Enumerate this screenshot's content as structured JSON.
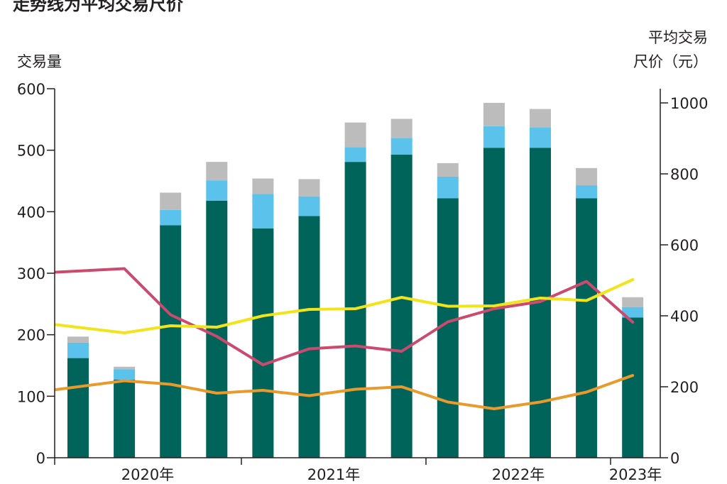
{
  "chart_data": {
    "type": "bar",
    "title": "走势线为平均交易尺价",
    "left_axis": {
      "label": "交易量",
      "ylim": [
        0,
        600
      ],
      "ticks": [
        "0",
        "100",
        "200",
        "300",
        "400",
        "500",
        "600"
      ]
    },
    "right_axis": {
      "label_lines": [
        "平均交易",
        "尺价（元）"
      ],
      "ylim": [
        0,
        1040
      ],
      "ticks": [
        "0",
        "200",
        "400",
        "600",
        "800",
        "1000"
      ]
    },
    "x_axis": {
      "labels": [
        "2020年",
        "2021年",
        "2022年",
        "2023年"
      ]
    },
    "bar_series": [
      {
        "color": "#00645a",
        "values": [
          162,
          127,
          378,
          418,
          373,
          393,
          481,
          493,
          422,
          504,
          504,
          422,
          228
        ]
      },
      {
        "color": "#5bc2ec",
        "values": [
          25,
          17,
          25,
          33,
          56,
          32,
          24,
          27,
          35,
          35,
          33,
          21,
          17
        ]
      },
      {
        "color": "#bcbcbc",
        "values": [
          10,
          4,
          28,
          30,
          25,
          28,
          40,
          31,
          22,
          38,
          30,
          28,
          16
        ]
      }
    ],
    "line_series": [
      {
        "color": "#cc4a6e",
        "axis": "right",
        "values": [
          523,
          533,
          403,
          342,
          262,
          307,
          315,
          300,
          383,
          420,
          440,
          497,
          382
        ]
      },
      {
        "color": "#f2e41a",
        "axis": "right",
        "values": [
          375,
          352,
          372,
          368,
          400,
          418,
          420,
          452,
          427,
          428,
          450,
          443,
          502
        ]
      },
      {
        "color": "#e89a2c",
        "axis": "right",
        "values": [
          192,
          217,
          207,
          182,
          190,
          175,
          193,
          200,
          157,
          138,
          157,
          185,
          232
        ]
      }
    ],
    "grid": false,
    "legend": "none"
  },
  "colors": {
    "axis": "#231f20",
    "text": "#231f20"
  }
}
